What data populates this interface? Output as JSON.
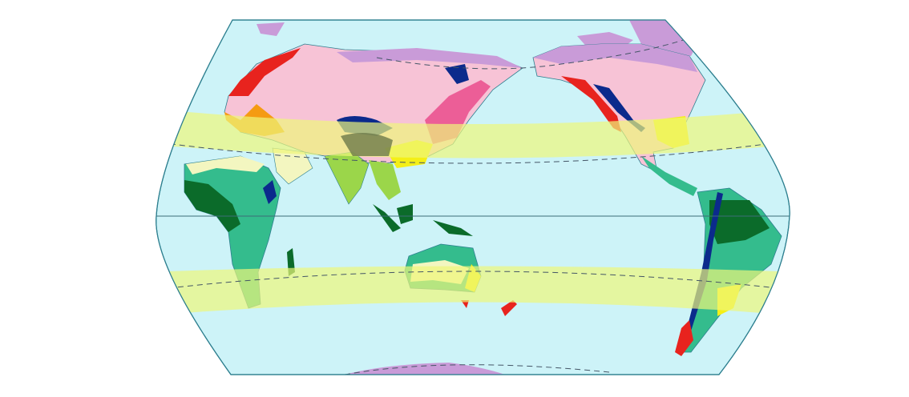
{
  "map": {
    "projection": "world-map-pacific-centered",
    "colors": {
      "ocean": "#cdf3f8",
      "tropic_band": "#eef77a",
      "ice_cap": "#c99bd8",
      "tundra_taiga": "#f7c3d6",
      "temperate_east_asia": "#ec5e97",
      "highland": "#0b2a8c",
      "marine_west_coast": "#e8231e",
      "mediterranean": "#f59b12",
      "subtropical_humid": "#f4ef17",
      "desert": "#f3f6c0",
      "tropical_savanna": "#34bc8d",
      "tropical_rainforest": "#0b6b2a",
      "monsoon": "#9bd64a",
      "outline": "#2d7f8f"
    }
  }
}
